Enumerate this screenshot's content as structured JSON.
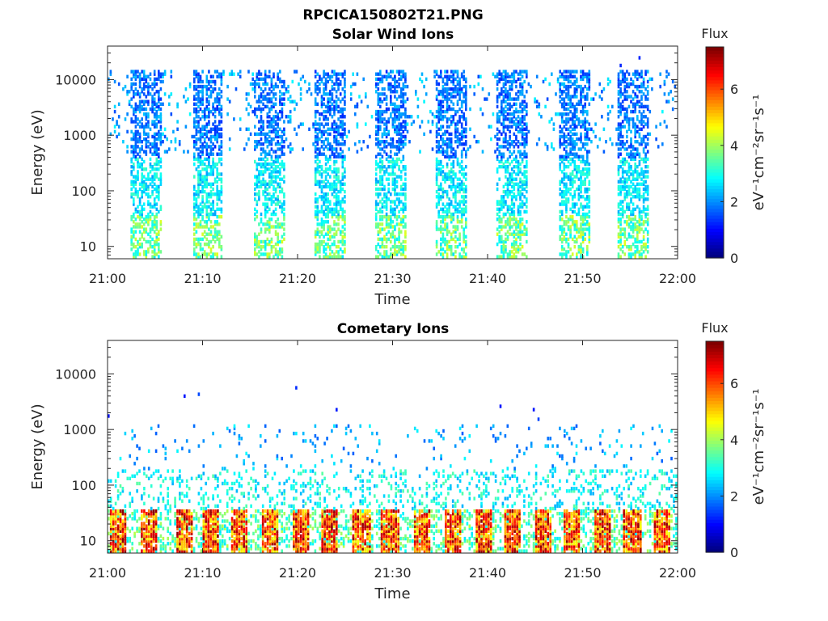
{
  "figure": {
    "file_title": "RPCICA150802T21.PNG"
  },
  "colormap": "jet",
  "chart_data": [
    {
      "type": "heatmap",
      "title": "Solar Wind Ions",
      "xlabel": "Time",
      "ylabel": "Energy (eV)",
      "x_ticks": [
        "21:00",
        "21:10",
        "21:20",
        "21:30",
        "21:40",
        "21:50",
        "22:00"
      ],
      "xlim": [
        "21:00",
        "22:00"
      ],
      "y_scale": "log",
      "y_ticks": [
        10,
        100,
        1000,
        10000
      ],
      "y_tick_labels": [
        "10",
        "100",
        "1000",
        "10000"
      ],
      "ylim": [
        6,
        40000
      ],
      "colorbar": {
        "title": "Flux",
        "label": "eV⁻¹cm⁻²sr⁻¹s⁻¹",
        "range": [
          0,
          7.5
        ],
        "ticks": [
          0,
          2,
          4,
          6
        ],
        "tick_labels": [
          "0",
          "2",
          "4",
          "6"
        ]
      },
      "description_bursts_start_minutes": [
        2.3,
        8.8,
        15.2,
        21.6,
        28.0,
        34.5,
        40.8,
        47.3,
        53.6
      ],
      "burst_duration_minutes": 3.3,
      "dense_energy_range_eV": [
        6,
        15000
      ],
      "sparse_energy_range_eV": [
        500,
        15000
      ],
      "peak_flux_low_energy": 4.5
    },
    {
      "type": "heatmap",
      "title": "Cometary Ions",
      "xlabel": "Time",
      "ylabel": "Energy (eV)",
      "x_ticks": [
        "21:00",
        "21:10",
        "21:20",
        "21:30",
        "21:40",
        "21:50",
        "22:00"
      ],
      "xlim": [
        "21:00",
        "22:00"
      ],
      "y_scale": "log",
      "y_ticks": [
        10,
        100,
        1000,
        10000
      ],
      "y_tick_labels": [
        "10",
        "100",
        "1000",
        "10000"
      ],
      "ylim": [
        6,
        40000
      ],
      "colorbar": {
        "title": "Flux",
        "label": "eV⁻¹cm⁻²sr⁻¹s⁻¹",
        "range": [
          0,
          7.5
        ],
        "ticks": [
          0,
          2,
          4,
          6
        ],
        "tick_labels": [
          "0",
          "2",
          "4",
          "6"
        ]
      },
      "hot_band_centers_minutes": [
        1.0,
        4.2,
        7.9,
        10.8,
        13.8,
        17.0,
        20.2,
        23.3,
        26.6,
        29.6,
        33.0,
        36.3,
        39.5,
        42.5,
        45.8,
        48.7,
        52.0,
        55.1,
        58.3
      ],
      "hot_energy_range_eV": [
        8,
        40
      ],
      "peak_flux_low_energy": 7.0
    }
  ]
}
